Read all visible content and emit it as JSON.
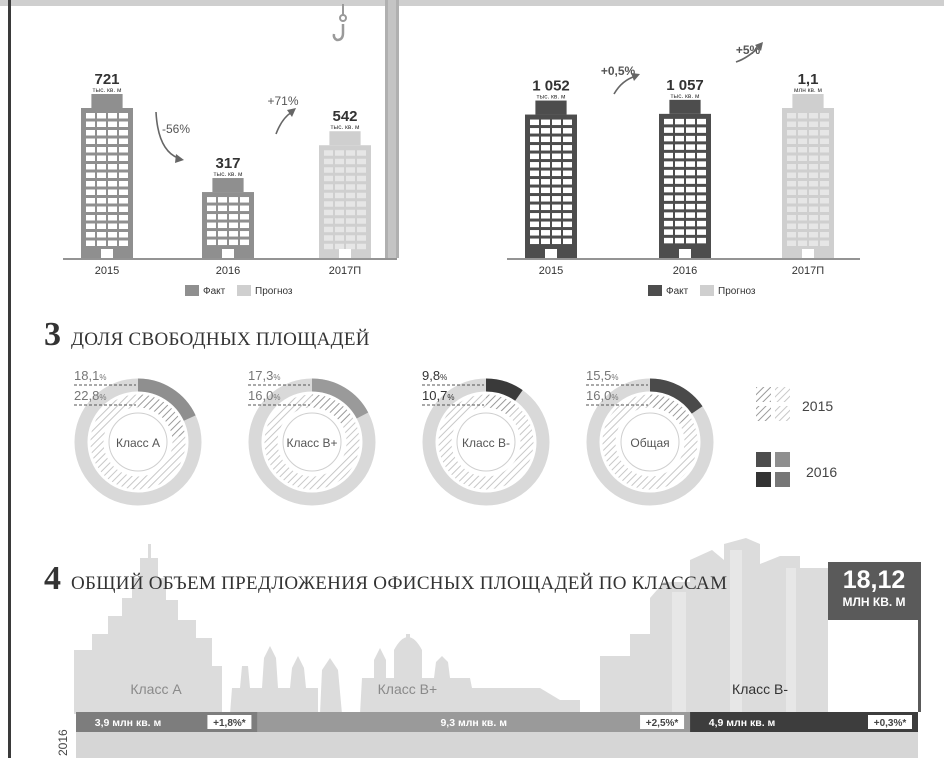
{
  "top_charts": [
    {
      "values": [
        {
          "year": "2015",
          "value": "721",
          "unit": "тыс. кв. м",
          "kind": "fact"
        },
        {
          "year": "2016",
          "value": "317",
          "unit": "тыс. кв. м",
          "kind": "fact"
        },
        {
          "year": "2017П",
          "value": "542",
          "unit": "тыс. кв. м",
          "kind": "forecast"
        }
      ],
      "changes": [
        "-56%",
        "+71%"
      ],
      "legend": {
        "fact": "Факт",
        "forecast": "Прогноз"
      }
    },
    {
      "values": [
        {
          "year": "2015",
          "value": "1 052",
          "unit": "тыс. кв. м",
          "kind": "fact"
        },
        {
          "year": "2016",
          "value": "1 057",
          "unit": "тыс. кв. м",
          "kind": "fact"
        },
        {
          "year": "2017П",
          "value": "1,1",
          "unit": "млн кв. м",
          "kind": "forecast"
        }
      ],
      "changes": [
        "+0,5%",
        "+5%"
      ],
      "legend": {
        "fact": "Факт",
        "forecast": "Прогноз"
      }
    }
  ],
  "section3": {
    "number": "3",
    "title": "ДОЛЯ СВОБОДНЫХ ПЛОЩАДЕЙ"
  },
  "donuts": [
    {
      "label": "Класс А",
      "v2016": "18,1",
      "v2015": "22,8",
      "pct2016": 18.1,
      "pct2015": 22.8
    },
    {
      "label": "Класс В+",
      "v2016": "17,3",
      "v2015": "16,0",
      "pct2016": 17.3,
      "pct2015": 16.0
    },
    {
      "label": "Класс В-",
      "v2016": "9,8",
      "v2015": "10,7",
      "pct2016": 9.8,
      "pct2015": 10.7
    },
    {
      "label": "Общая",
      "v2016": "15,5",
      "v2015": "16,0",
      "pct2016": 15.5,
      "pct2015": 16.0
    }
  ],
  "donut_legend": {
    "y2015": "2015",
    "y2016": "2016"
  },
  "section4": {
    "number": "4",
    "title": "ОБЩИЙ ОБЪЕМ ПРЕДЛОЖЕНИЯ ОФИСНЫХ ПЛОЩАДЕЙ ПО КЛАССАМ"
  },
  "total": {
    "value": "18,12",
    "unit": "МЛН КВ. М"
  },
  "classes": [
    {
      "name": "Класс А",
      "volume": "3,9 млн кв. м",
      "change": "+1,8%*",
      "share": 3.9
    },
    {
      "name": "Класс В+",
      "volume": "9,3 млн кв. м",
      "change": "+2,5%*",
      "share": 9.3
    },
    {
      "name": "Класс В-",
      "volume": "4,9 млн кв. м",
      "change": "+0,3%*",
      "share": 4.9
    }
  ],
  "year_label": "2016",
  "colors": {
    "fact_gray": "#8f8f8f",
    "forecast_gray": "#cfcfcf",
    "dark": "#4d4d4d",
    "bar_a": "#7d7d7d",
    "bar_b": "#9a9a9a",
    "bar_c": "#3d3d3d"
  },
  "chart_data": [
    {
      "type": "bar",
      "categories": [
        "2015",
        "2016",
        "2017П"
      ],
      "values": [
        721,
        317,
        542
      ],
      "series_kind": [
        "Факт",
        "Факт",
        "Прогноз"
      ]
    },
    {
      "type": "bar",
      "categories": [
        "2015",
        "2016",
        "2017П"
      ],
      "values": [
        1052,
        1057,
        1100
      ],
      "series_kind": [
        "Факт",
        "Факт",
        "Прогноз"
      ]
    },
    {
      "type": "pie",
      "categories": [
        "Класс А",
        "Класс В+",
        "Класс В-",
        "Общая"
      ],
      "series": [
        {
          "name": "2015",
          "values": [
            22.8,
            16.0,
            10.7,
            16.0
          ]
        },
        {
          "name": "2016",
          "values": [
            18.1,
            17.3,
            9.8,
            15.5
          ]
        }
      ]
    },
    {
      "type": "bar",
      "categories": [
        "Класс А",
        "Класс В+",
        "Класс В-"
      ],
      "values": [
        3.9,
        9.3,
        4.9
      ]
    }
  ]
}
